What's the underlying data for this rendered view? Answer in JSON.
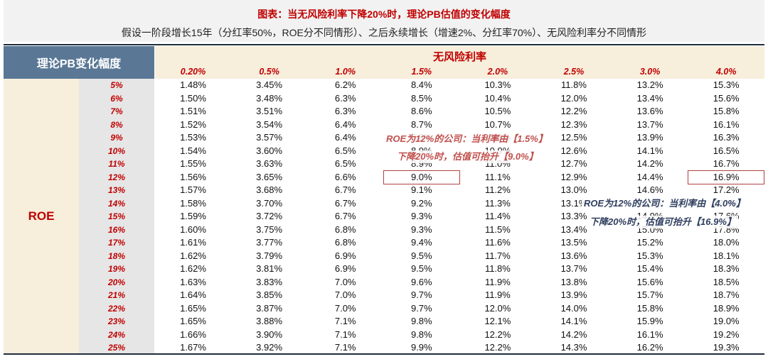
{
  "title": "图表：当无风险利率下降20%时，理论PB估值的变化幅度",
  "subtitle": "假设一阶段增长15年（分红率50%，ROE分不同情形）、之后永续增长（增速2%、分红率70%）、无风险利率分不同情形",
  "table": {
    "corner_label": "理论PB变化幅度",
    "column_group_label": "无风险利率",
    "row_group_label": "ROE",
    "rates": [
      "0.20%",
      "0.5%",
      "1.0%",
      "1.5%",
      "2.0%",
      "2.5%",
      "3.0%",
      "4.0%"
    ],
    "rows": [
      {
        "roe": "5%",
        "values": [
          "1.48%",
          "3.45%",
          "6.2%",
          "8.4%",
          "10.3%",
          "11.8%",
          "13.2%",
          "15.3%"
        ]
      },
      {
        "roe": "6%",
        "values": [
          "1.50%",
          "3.48%",
          "6.3%",
          "8.5%",
          "10.4%",
          "12.0%",
          "13.4%",
          "15.6%"
        ]
      },
      {
        "roe": "7%",
        "values": [
          "1.51%",
          "3.51%",
          "6.3%",
          "8.6%",
          "10.5%",
          "12.2%",
          "13.6%",
          "15.8%"
        ]
      },
      {
        "roe": "8%",
        "values": [
          "1.52%",
          "3.54%",
          "6.4%",
          "8.7%",
          "10.7%",
          "12.3%",
          "13.7%",
          "16.1%"
        ]
      },
      {
        "roe": "9%",
        "values": [
          "1.53%",
          "3.57%",
          "6.4%",
          "8.8%",
          "10.8%",
          "12.5%",
          "13.9%",
          "16.3%"
        ]
      },
      {
        "roe": "10%",
        "values": [
          "1.54%",
          "3.60%",
          "6.5%",
          "8.9%",
          "10.9%",
          "12.6%",
          "14.1%",
          "16.5%"
        ]
      },
      {
        "roe": "11%",
        "values": [
          "1.55%",
          "3.63%",
          "6.5%",
          "8.9%",
          "11.0%",
          "12.7%",
          "14.2%",
          "16.7%"
        ]
      },
      {
        "roe": "12%",
        "values": [
          "1.56%",
          "3.65%",
          "6.6%",
          "9.0%",
          "11.1%",
          "12.9%",
          "14.4%",
          "16.9%"
        ]
      },
      {
        "roe": "13%",
        "values": [
          "1.57%",
          "3.68%",
          "6.7%",
          "9.1%",
          "11.2%",
          "13.0%",
          "14.6%",
          "17.2%"
        ]
      },
      {
        "roe": "14%",
        "values": [
          "1.58%",
          "3.70%",
          "6.7%",
          "9.2%",
          "11.3%",
          "13.1%",
          "14.7%",
          "17.4%"
        ]
      },
      {
        "roe": "15%",
        "values": [
          "1.59%",
          "3.72%",
          "6.7%",
          "9.3%",
          "11.4%",
          "13.3%",
          "14.9%",
          "17.6%"
        ]
      },
      {
        "roe": "16%",
        "values": [
          "1.60%",
          "3.75%",
          "6.8%",
          "9.3%",
          "11.5%",
          "13.4%",
          "15.0%",
          "17.8%"
        ]
      },
      {
        "roe": "17%",
        "values": [
          "1.61%",
          "3.77%",
          "6.8%",
          "9.4%",
          "11.6%",
          "13.5%",
          "15.2%",
          "18.0%"
        ]
      },
      {
        "roe": "18%",
        "values": [
          "1.62%",
          "3.79%",
          "6.9%",
          "9.5%",
          "11.7%",
          "13.6%",
          "15.3%",
          "18.1%"
        ]
      },
      {
        "roe": "19%",
        "values": [
          "1.62%",
          "3.81%",
          "6.9%",
          "9.5%",
          "11.8%",
          "13.7%",
          "15.4%",
          "18.3%"
        ]
      },
      {
        "roe": "20%",
        "values": [
          "1.63%",
          "3.83%",
          "7.0%",
          "9.6%",
          "11.9%",
          "13.8%",
          "15.6%",
          "18.5%"
        ]
      },
      {
        "roe": "21%",
        "values": [
          "1.64%",
          "3.85%",
          "7.0%",
          "9.7%",
          "11.9%",
          "13.9%",
          "15.7%",
          "18.7%"
        ]
      },
      {
        "roe": "22%",
        "values": [
          "1.65%",
          "3.87%",
          "7.0%",
          "9.7%",
          "12.0%",
          "14.0%",
          "15.8%",
          "18.9%"
        ]
      },
      {
        "roe": "23%",
        "values": [
          "1.65%",
          "3.88%",
          "7.1%",
          "9.8%",
          "12.1%",
          "14.1%",
          "15.9%",
          "19.0%"
        ]
      },
      {
        "roe": "24%",
        "values": [
          "1.66%",
          "3.90%",
          "7.1%",
          "9.8%",
          "12.2%",
          "14.2%",
          "16.1%",
          "19.2%"
        ]
      },
      {
        "roe": "25%",
        "values": [
          "1.67%",
          "3.92%",
          "7.1%",
          "9.9%",
          "12.2%",
          "14.3%",
          "16.2%",
          "19.3%"
        ]
      }
    ]
  },
  "annotations": {
    "a1_line1": "ROE为12%的公司：当利率由【1.5%】",
    "a1_line2": "下降20%时，估值可抬升【9.0%】",
    "a2_line1": "ROE为12%的公司：当利率由【4.0%】",
    "a2_line2": "下降20%时，估值可抬升【16.9%】"
  },
  "colors": {
    "accent_red": "#c00000",
    "header_blue": "#5a7896",
    "header_cream": "#f7eedc",
    "highlight_border": "#b04040",
    "annotation_navy": "#2f3f5f"
  }
}
